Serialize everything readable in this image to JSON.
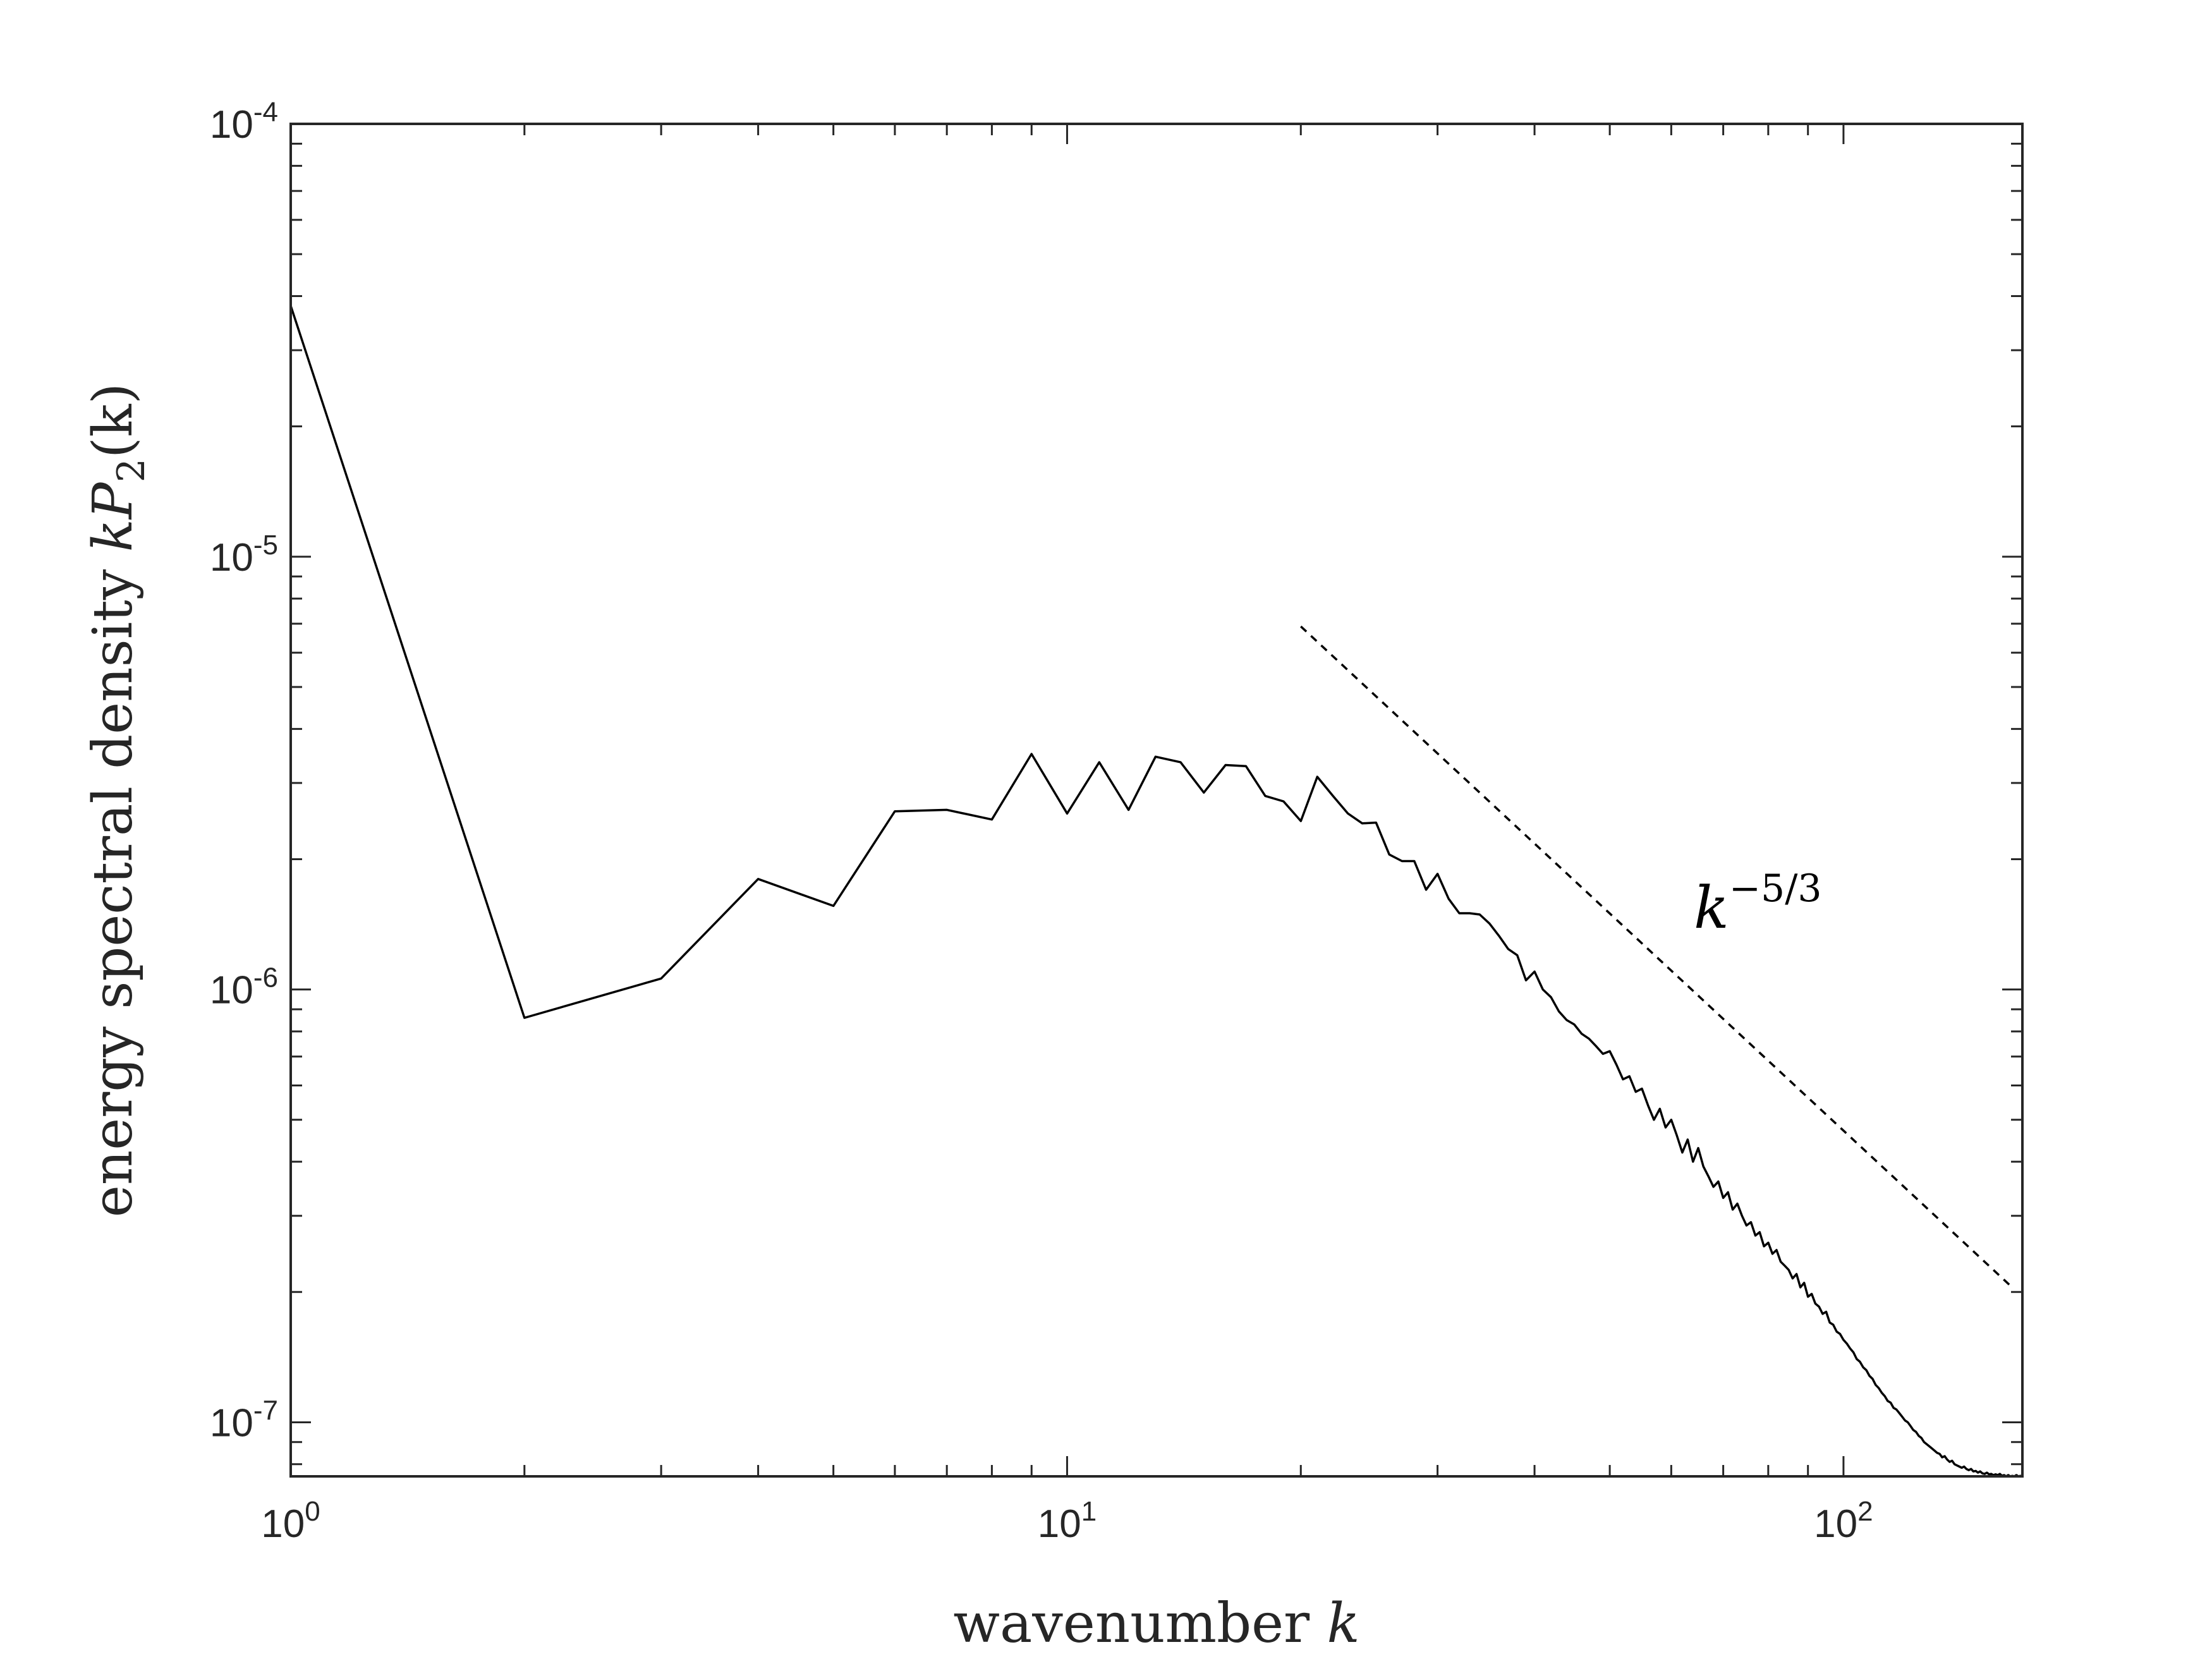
{
  "chart_data": {
    "type": "line",
    "xscale": "log",
    "yscale": "log",
    "xlim": [
      1,
      170
    ],
    "ylim": [
      7.5e-08,
      0.0001
    ],
    "xticks": [
      {
        "base": "10",
        "exp": "0"
      },
      {
        "base": "10",
        "exp": "1"
      },
      {
        "base": "10",
        "exp": "2"
      }
    ],
    "yticks": [
      {
        "base": "10",
        "exp": "-4"
      },
      {
        "base": "10",
        "exp": "-5"
      },
      {
        "base": "10",
        "exp": "-6"
      },
      {
        "base": "10",
        "exp": "-7"
      }
    ],
    "xlabel": {
      "text": "wavenumber ",
      "var": "k"
    },
    "ylabel": {
      "text": "energy spectral density ",
      "var": "kP",
      "sub": "2",
      "arg": "(k)"
    },
    "annotation": {
      "base": "k",
      "exp": "−5/3"
    },
    "colors": {
      "series": "#000000",
      "axes": "#262626",
      "reference": "#000000"
    },
    "series": [
      {
        "x": [
          1,
          2,
          3,
          4,
          5,
          6,
          7,
          8,
          9,
          10,
          11,
          12,
          13,
          14,
          15,
          16,
          17,
          18,
          19,
          20,
          21,
          22,
          23,
          24,
          25,
          26,
          27,
          28,
          29,
          30,
          31,
          32,
          33,
          34,
          35,
          36,
          37,
          38,
          39,
          40,
          41,
          42,
          43,
          44,
          45,
          46,
          47,
          48,
          49,
          50,
          51,
          52,
          53,
          54,
          55,
          56,
          57,
          58,
          59,
          60,
          61,
          62,
          63,
          64,
          65,
          66,
          67,
          68,
          69,
          70,
          71,
          72,
          73,
          74,
          75,
          76,
          77,
          78,
          79,
          80,
          81,
          82,
          83,
          84,
          85,
          86,
          87,
          88,
          89,
          90,
          91,
          92,
          93,
          94,
          95,
          96,
          97,
          98,
          99,
          100,
          101,
          102,
          103,
          104,
          105,
          106,
          107,
          108,
          109,
          110,
          111,
          112,
          113,
          114,
          115,
          116,
          117,
          118,
          119,
          120,
          121,
          122,
          123,
          124,
          125,
          126,
          127,
          128,
          129,
          130,
          131,
          132,
          133,
          134,
          135,
          136,
          137,
          138,
          139,
          140,
          141,
          142,
          143,
          144,
          145,
          146,
          147,
          148,
          149,
          150,
          151,
          152,
          153,
          154,
          155,
          156,
          157,
          158,
          159,
          160,
          161,
          162,
          163,
          164,
          165,
          166,
          167,
          168,
          169,
          170
        ],
        "y": [
          3.8e-05,
          8.6e-07,
          1.06e-06,
          1.8e-06,
          1.56e-06,
          2.58e-06,
          2.6e-06,
          2.47e-06,
          3.5e-06,
          2.55e-06,
          3.35e-06,
          2.6e-06,
          3.45e-06,
          3.35e-06,
          2.85e-06,
          3.3e-06,
          3.28e-06,
          2.8e-06,
          2.72e-06,
          2.45e-06,
          3.1e-06,
          2.8e-06,
          2.55e-06,
          2.42e-06,
          2.43e-06,
          2.05e-06,
          1.98e-06,
          1.98e-06,
          1.7e-06,
          1.85e-06,
          1.62e-06,
          1.5e-06,
          1.5e-06,
          1.49e-06,
          1.42e-06,
          1.33e-06,
          1.24e-06,
          1.2e-06,
          1.05e-06,
          1.1e-06,
          1e-06,
          9.6e-07,
          8.9e-07,
          8.5e-07,
          8.3e-07,
          7.9e-07,
          7.7e-07,
          7.4e-07,
          7.1e-07,
          7.2e-07,
          6.7e-07,
          6.2e-07,
          6.3e-07,
          5.8e-07,
          5.9e-07,
          5.4e-07,
          5e-07,
          5.3e-07,
          4.8e-07,
          5e-07,
          4.6e-07,
          4.2e-07,
          4.5e-07,
          4e-07,
          4.3e-07,
          3.9e-07,
          3.7e-07,
          3.5e-07,
          3.6e-07,
          3.3e-07,
          3.4e-07,
          3.1e-07,
          3.2e-07,
          3e-07,
          2.85e-07,
          2.9e-07,
          2.7e-07,
          2.75e-07,
          2.55e-07,
          2.6e-07,
          2.45e-07,
          2.5e-07,
          2.35e-07,
          2.3e-07,
          2.25e-07,
          2.15e-07,
          2.2e-07,
          2.05e-07,
          2.1e-07,
          1.95e-07,
          1.98e-07,
          1.88e-07,
          1.85e-07,
          1.78e-07,
          1.8e-07,
          1.7e-07,
          1.68e-07,
          1.62e-07,
          1.6e-07,
          1.55e-07,
          1.52e-07,
          1.48e-07,
          1.45e-07,
          1.4e-07,
          1.38e-07,
          1.34e-07,
          1.32e-07,
          1.28e-07,
          1.26e-07,
          1.22e-07,
          1.2e-07,
          1.17e-07,
          1.15e-07,
          1.12e-07,
          1.11e-07,
          1.08e-07,
          1.07e-07,
          1.05e-07,
          1.03e-07,
          1.01e-07,
          1e-07,
          9.8e-08,
          9.6e-08,
          9.5e-08,
          9.3e-08,
          9.2e-08,
          9e-08,
          8.9e-08,
          8.8e-08,
          8.7e-08,
          8.6e-08,
          8.5e-08,
          8.45e-08,
          8.3e-08,
          8.35e-08,
          8.2e-08,
          8.1e-08,
          8.15e-08,
          8e-08,
          7.95e-08,
          7.9e-08,
          7.85e-08,
          7.9e-08,
          7.8e-08,
          7.75e-08,
          7.8e-08,
          7.7e-08,
          7.72e-08,
          7.65e-08,
          7.7e-08,
          7.62e-08,
          7.6e-08,
          7.65e-08,
          7.58e-08,
          7.6e-08,
          7.55e-08,
          7.58e-08,
          7.55e-08,
          7.6e-08,
          7.52e-08,
          7.55e-08,
          7.5e-08,
          7.55e-08,
          7.5e-08,
          7.52e-08,
          7.5e-08,
          7.55e-08,
          7.5e-08,
          7.52e-08,
          7.5e-08
        ]
      }
    ],
    "reference_line": {
      "exponent": -1.6667,
      "x_start": 20,
      "x_end": 165,
      "y_start": 6.9e-06
    },
    "legend": "none",
    "grid": false
  }
}
